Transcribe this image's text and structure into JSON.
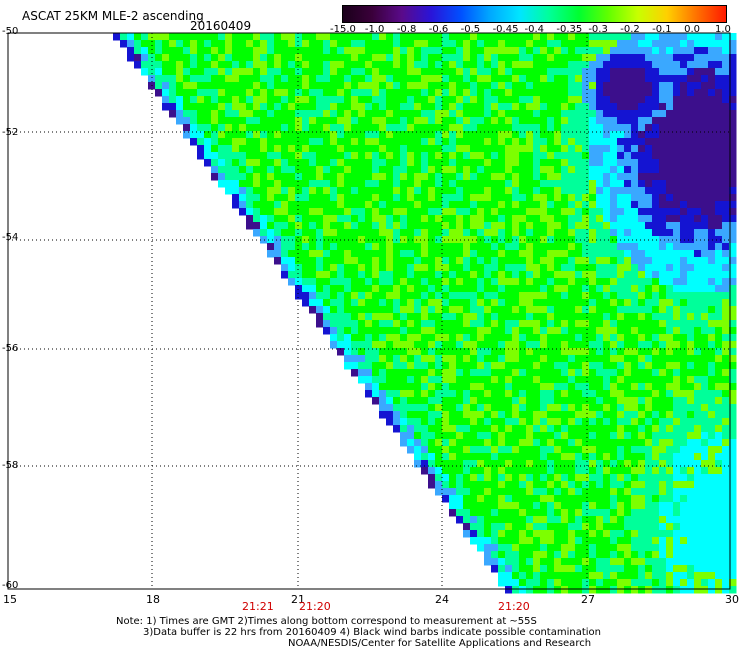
{
  "header": {
    "title": "ASCAT 25KM MLE-2 ascending",
    "date": "20160409"
  },
  "colorbar": {
    "labels": [
      "-15.0",
      "-1.0",
      "-0.8",
      "-0.6",
      "-0.5",
      "-0.45",
      "-0.4",
      "-0.35",
      "-0.3",
      "-0.2",
      "-0.1",
      "0.0",
      "1.0"
    ],
    "colors": [
      "#3a003a",
      "#5a0a8a",
      "#2a14d8",
      "#0050ff",
      "#00a8ff",
      "#00e6ff",
      "#00ff9a",
      "#00ff30",
      "#60ff00",
      "#c8ff00",
      "#ffd000",
      "#ff7000",
      "#ff1a00"
    ]
  },
  "map": {
    "lat_labels": [
      "-50",
      "-52",
      "-54",
      "-56",
      "-58",
      "-60"
    ],
    "lon_labels": [
      "15",
      "18",
      "21",
      "24",
      "27",
      "30"
    ],
    "time_labels": [
      "21:21",
      "21:20",
      "21:20"
    ],
    "palette": {
      "purple": "#3c0f8c",
      "blue": "#1414d2",
      "lightblue": "#3aa8ff",
      "cyan": "#00ffff",
      "aqua": "#00ff9a",
      "green": "#00ff00",
      "lime": "#7dff00"
    }
  },
  "notes": {
    "line1": "Note: 1) Times are GMT 2)Times along bottom correspond to measurement at ~55S",
    "line2": "3)Data buffer is 22 hrs from 20160409 4) Black wind barbs indicate possible contamination",
    "line3": "NOAA/NESDIS/Center for Satellite Applications and Research"
  }
}
